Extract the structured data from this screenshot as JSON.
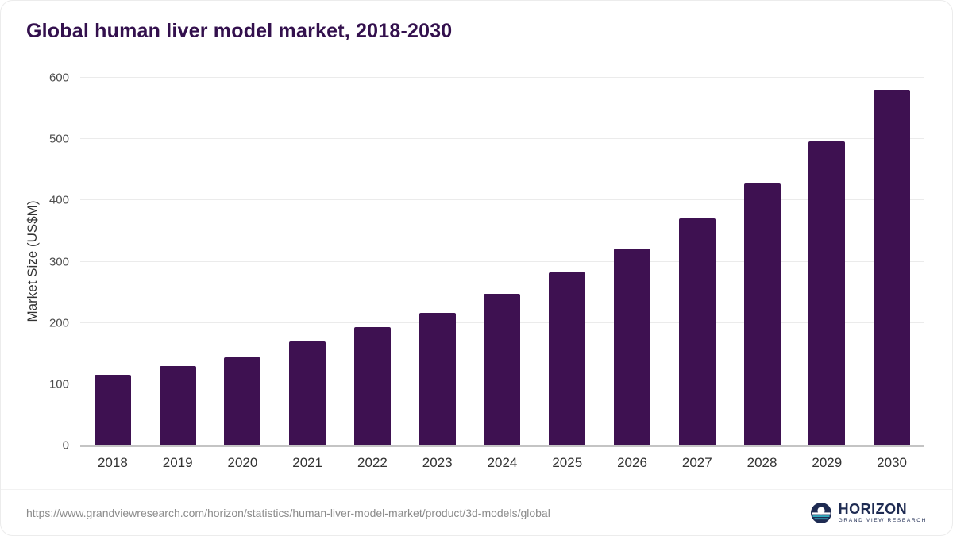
{
  "chart_data": {
    "type": "bar",
    "title": "Global human liver model market, 2018-2030",
    "categories": [
      "2018",
      "2019",
      "2020",
      "2021",
      "2022",
      "2023",
      "2024",
      "2025",
      "2026",
      "2027",
      "2028",
      "2029",
      "2030"
    ],
    "values": [
      115,
      130,
      144,
      170,
      193,
      217,
      247,
      282,
      321,
      371,
      428,
      496,
      580
    ],
    "xlabel": "",
    "ylabel": "Market Size (US$M)",
    "ylim": [
      0,
      600
    ],
    "yticks": [
      0,
      100,
      200,
      300,
      400,
      500,
      600
    ],
    "grid": "horizontal",
    "legend": "none",
    "bar_color": "#3e1151"
  },
  "footer": {
    "source_url": "https://www.grandviewresearch.com/horizon/statistics/human-liver-model-market/product/3d-models/global",
    "logo": {
      "name": "HORIZON",
      "subtitle": "GRAND VIEW RESEARCH"
    }
  },
  "colors": {
    "title": "#33104d",
    "bar": "#3e1151",
    "logo_navy": "#1e2b52",
    "logo_teal": "#35b7c9"
  }
}
